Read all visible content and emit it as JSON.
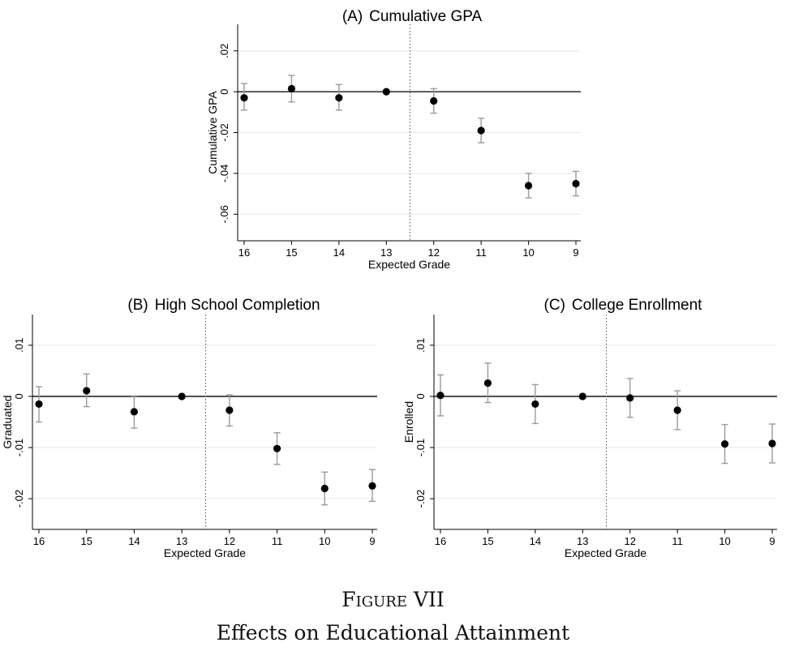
{
  "figure": {
    "label": "Figure VII",
    "title": "Effects on Educational Attainment"
  },
  "chart_data": [
    {
      "type": "scatter",
      "panel": "(A)",
      "title": "Cumulative GPA",
      "xlabel": "Expected Grade",
      "ylabel": "Cumulative GPA",
      "categories": [
        "16",
        "15",
        "14",
        "13",
        "12",
        "11",
        "10",
        "9"
      ],
      "values": [
        -0.003,
        0.0015,
        -0.003,
        0.0,
        -0.0045,
        -0.019,
        -0.046,
        -0.045
      ],
      "ci_low": [
        -0.009,
        -0.005,
        -0.009,
        0.0,
        -0.0105,
        -0.025,
        -0.052,
        -0.051
      ],
      "ci_high": [
        0.004,
        0.008,
        0.0035,
        0.0,
        0.0015,
        -0.013,
        -0.04,
        -0.039
      ],
      "ylim": [
        -0.073,
        0.033
      ],
      "yticks": [
        0.02,
        0,
        -0.02,
        -0.04,
        -0.06
      ],
      "ytick_labels": [
        ".02",
        "0",
        "-.02",
        "-.04",
        "-.06"
      ],
      "reference_line": 0,
      "vertical_marker_between": [
        "13",
        "12"
      ],
      "grid": true
    },
    {
      "type": "scatter",
      "panel": "(B)",
      "title": "High School Completion",
      "xlabel": "Expected Grade",
      "ylabel": "Graduated",
      "categories": [
        "16",
        "15",
        "14",
        "13",
        "12",
        "11",
        "10",
        "9"
      ],
      "values": [
        -0.0015,
        0.0011,
        -0.003,
        0.0,
        -0.0027,
        -0.0102,
        -0.018,
        -0.0175
      ],
      "ci_low": [
        -0.005,
        -0.002,
        -0.0062,
        0.0,
        -0.0058,
        -0.0133,
        -0.0212,
        -0.0205
      ],
      "ci_high": [
        0.0019,
        0.0044,
        0.0001,
        0.0,
        0.0003,
        -0.0071,
        -0.0148,
        -0.0143
      ],
      "ylim": [
        -0.026,
        0.016
      ],
      "yticks": [
        0.01,
        0,
        -0.01,
        -0.02
      ],
      "ytick_labels": [
        ".01",
        "0",
        "-.01",
        "-.02"
      ],
      "reference_line": 0,
      "vertical_marker_between": [
        "13",
        "12"
      ],
      "grid": true
    },
    {
      "type": "scatter",
      "panel": "(C)",
      "title": "College Enrollment",
      "xlabel": "Expected Grade",
      "ylabel": "Enrolled",
      "categories": [
        "16",
        "15",
        "14",
        "13",
        "12",
        "11",
        "10",
        "9"
      ],
      "values": [
        0.0002,
        0.0026,
        -0.0015,
        0.0,
        -0.0003,
        -0.0027,
        -0.0093,
        -0.0092
      ],
      "ci_low": [
        -0.0038,
        -0.0012,
        -0.0053,
        0.0,
        -0.0041,
        -0.0065,
        -0.0131,
        -0.013
      ],
      "ci_high": [
        0.0042,
        0.0065,
        0.0023,
        0.0,
        0.0035,
        0.0011,
        -0.0055,
        -0.0054
      ],
      "ylim": [
        -0.026,
        0.016
      ],
      "yticks": [
        0.01,
        0,
        -0.01,
        -0.02
      ],
      "ytick_labels": [
        ".01",
        "0",
        "-.01",
        "-.02"
      ],
      "reference_line": 0,
      "vertical_marker_between": [
        "13",
        "12"
      ],
      "grid": true
    }
  ]
}
